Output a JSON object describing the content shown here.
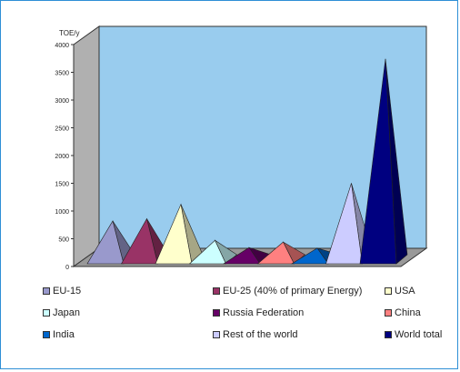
{
  "chart_data": {
    "type": "bar",
    "style": "3d-pyramid",
    "ylabel": "TOE/y",
    "ylim": [
      0,
      4000
    ],
    "yticks": [
      0,
      500,
      1000,
      1500,
      2000,
      2500,
      3000,
      3500,
      4000
    ],
    "grid": false,
    "legend_position": "bottom",
    "wall_color": "#99ccee",
    "floor_color": "#999999",
    "categories": [
      "EU-15",
      "EU-25 (40% of primary Energy)",
      "USA",
      "Japan",
      "Russia Federation",
      "China",
      "India",
      "Rest of the world",
      "World total"
    ],
    "values": [
      690,
      730,
      990,
      340,
      210,
      310,
      200,
      1370,
      3610
    ],
    "colors": [
      "#9999cc",
      "#993366",
      "#ffffcc",
      "#ccffff",
      "#660066",
      "#ff8080",
      "#0066cc",
      "#ccccff",
      "#000080"
    ]
  }
}
